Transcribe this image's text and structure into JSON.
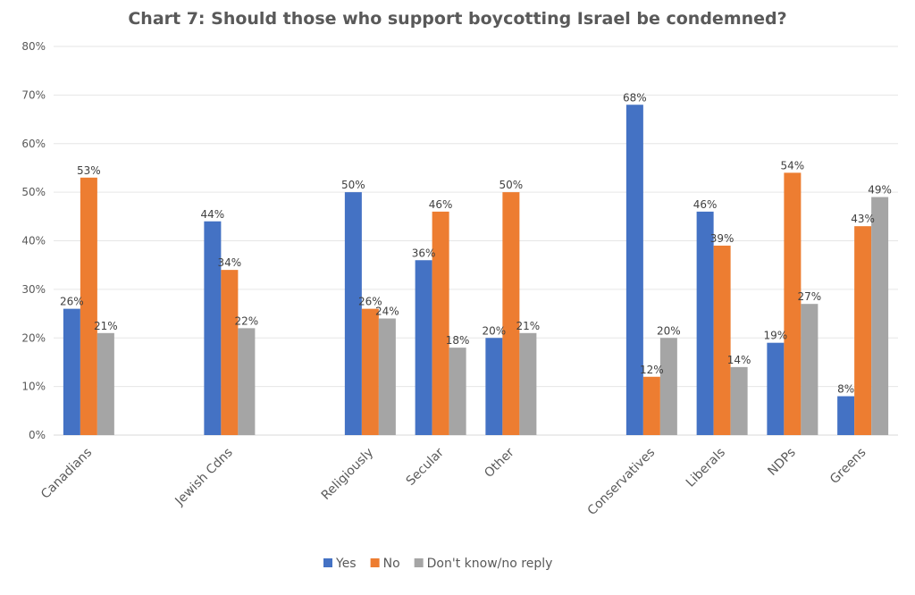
{
  "chart_data": {
    "type": "bar",
    "title": "Chart 7:  Should those who support boycotting Israel be condemned?",
    "xlabel": "",
    "ylabel": "",
    "ylim": [
      0,
      80
    ],
    "yticks": [
      "0%",
      "10%",
      "20%",
      "30%",
      "40%",
      "50%",
      "60%",
      "70%",
      "80%"
    ],
    "grid": true,
    "legend_position": "bottom",
    "categories": [
      "Canadians",
      "",
      "Jewish Cdns",
      "",
      "Religiously",
      "Secular",
      "Other",
      "",
      "Conservatives",
      "Liberals",
      "NDPs",
      "Greens"
    ],
    "series": [
      {
        "name": "Yes",
        "color": "#4472C4",
        "values": [
          26,
          null,
          44,
          null,
          50,
          36,
          20,
          null,
          68,
          46,
          19,
          8
        ]
      },
      {
        "name": "No",
        "color": "#ED7D31",
        "values": [
          53,
          null,
          34,
          null,
          26,
          46,
          50,
          null,
          12,
          39,
          54,
          43
        ]
      },
      {
        "name": "Don't know/no reply",
        "color": "#A5A5A5",
        "values": [
          21,
          null,
          22,
          null,
          24,
          18,
          21,
          null,
          20,
          14,
          27,
          49
        ]
      }
    ]
  }
}
